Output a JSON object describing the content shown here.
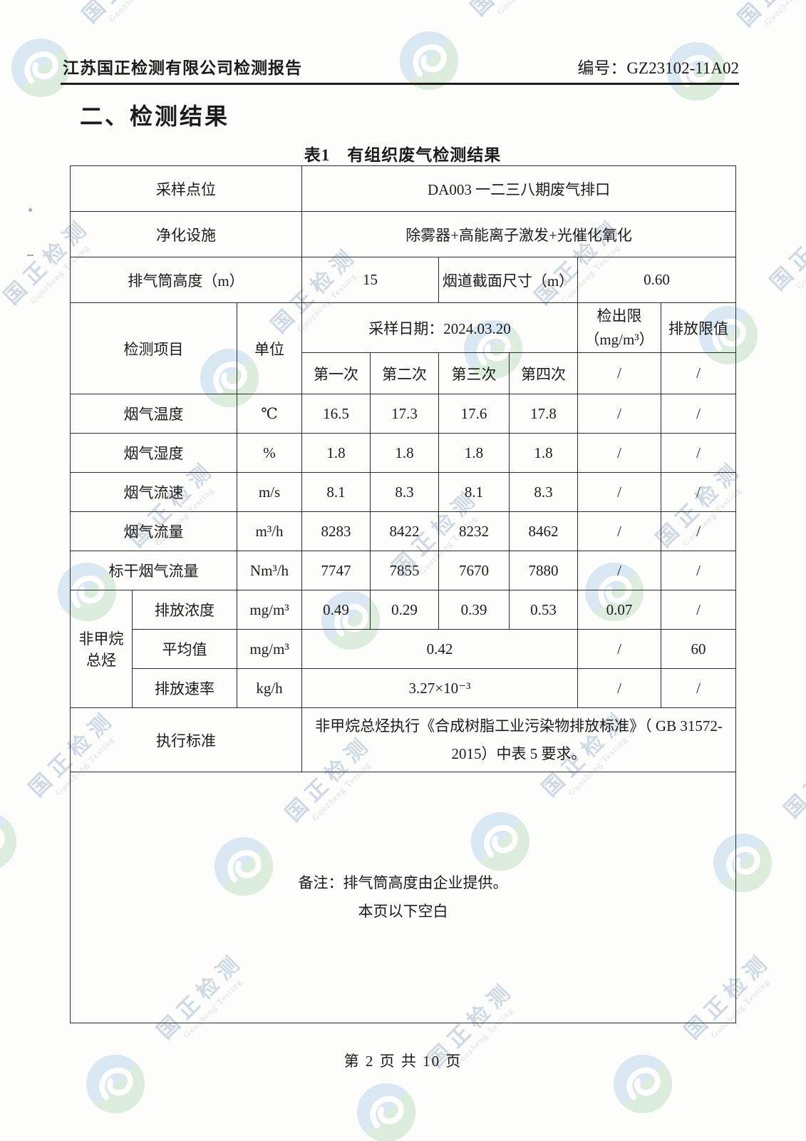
{
  "header": {
    "title": "江苏国正检测有限公司检测报告",
    "report_no": "编号：GZ23102-11A02"
  },
  "section_title": "二、检测结果",
  "table_title": "表1　有组织废气检测结果",
  "info_rows": [
    {
      "label": "采样点位",
      "value": "DA003 一二三八期废气排口"
    },
    {
      "label": "净化设施",
      "value": "除雾器+高能离子激发+光催化氧化"
    }
  ],
  "stack_row": {
    "label1": "排气筒高度（m）",
    "value1": "15",
    "label2": "烟道截面尺寸（m）",
    "value2": "0.60"
  },
  "table_header": {
    "item": "检测项目",
    "unit": "单位",
    "sample_date": "采样日期：2024.03.20",
    "detection_limit_line1": "检出限",
    "detection_limit_line2": "（mg/m³）",
    "emission_limit": "排放限值",
    "runs": [
      "第一次",
      "第二次",
      "第三次",
      "第四次"
    ],
    "run_slash": [
      "/",
      "/"
    ]
  },
  "data_rows": [
    {
      "item": "烟气温度",
      "unit": "℃",
      "values": [
        "16.5",
        "17.3",
        "17.6",
        "17.8"
      ],
      "limit": "/",
      "emission": "/"
    },
    {
      "item": "烟气湿度",
      "unit": "%",
      "values": [
        "1.8",
        "1.8",
        "1.8",
        "1.8"
      ],
      "limit": "/",
      "emission": "/"
    },
    {
      "item": "烟气流速",
      "unit": "m/s",
      "values": [
        "8.1",
        "8.3",
        "8.1",
        "8.3"
      ],
      "limit": "/",
      "emission": "/"
    },
    {
      "item": "烟气流量",
      "unit": "m³/h",
      "values": [
        "8283",
        "8422",
        "8232",
        "8462"
      ],
      "limit": "/",
      "emission": "/"
    },
    {
      "item": "标干烟气流量",
      "unit": "Nm³/h",
      "values": [
        "7747",
        "7855",
        "7670",
        "7880"
      ],
      "limit": "/",
      "emission": "/"
    }
  ],
  "group": {
    "name": "非甲烷总烃",
    "rows": [
      {
        "item": "排放浓度",
        "unit": "mg/m³",
        "values": [
          "0.49",
          "0.29",
          "0.39",
          "0.53"
        ],
        "limit": "0.07",
        "emission": "/"
      },
      {
        "item": "平均值",
        "unit": "mg/m³",
        "merged_value": "0.42",
        "limit": "/",
        "emission": "60"
      },
      {
        "item": "排放速率",
        "unit": "kg/h",
        "merged_value": "3.27×10⁻³",
        "limit": "/",
        "emission": "/"
      }
    ]
  },
  "standard_row": {
    "label": "执行标准",
    "text": "非甲烷总烃执行《合成树脂工业污染物排放标准》（ GB 31572-2015）中表 5 要求。"
  },
  "remarks": {
    "line1": "备注：排气筒高度由企业提供。",
    "line2": "本页以下空白"
  },
  "footer": {
    "page_text": "第 2 页 共 10 页"
  },
  "watermark": {
    "text_cn": "国正检测",
    "text_en": "Guozheng Testing"
  }
}
